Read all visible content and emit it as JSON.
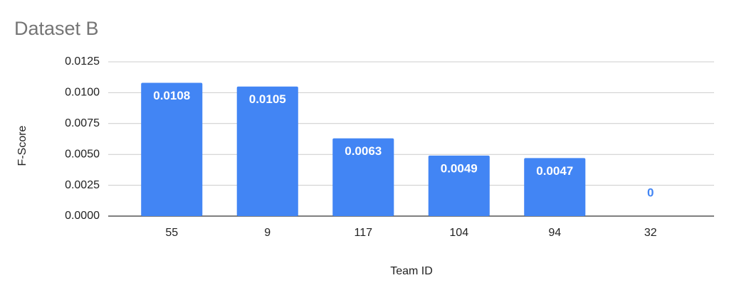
{
  "chart_data": {
    "type": "bar",
    "title": "Dataset B",
    "x_label": "Team ID",
    "y_label": "F-Score",
    "categories": [
      "55",
      "9",
      "117",
      "104",
      "94",
      "32"
    ],
    "values": [
      0.0108,
      0.0105,
      0.0063,
      0.0049,
      0.0047,
      0
    ],
    "color": "#4285f4",
    "ylim": [
      0,
      0.0125
    ],
    "yticks": [
      {
        "value": 0,
        "label": "0.0000"
      },
      {
        "value": 0.0025,
        "label": "0.0025"
      },
      {
        "value": 0.005,
        "label": "0.0050"
      },
      {
        "value": 0.0075,
        "label": "0.0075"
      },
      {
        "value": 0.01,
        "label": "0.0100"
      },
      {
        "value": 0.0125,
        "label": "0.0125"
      }
    ],
    "grid": true
  }
}
